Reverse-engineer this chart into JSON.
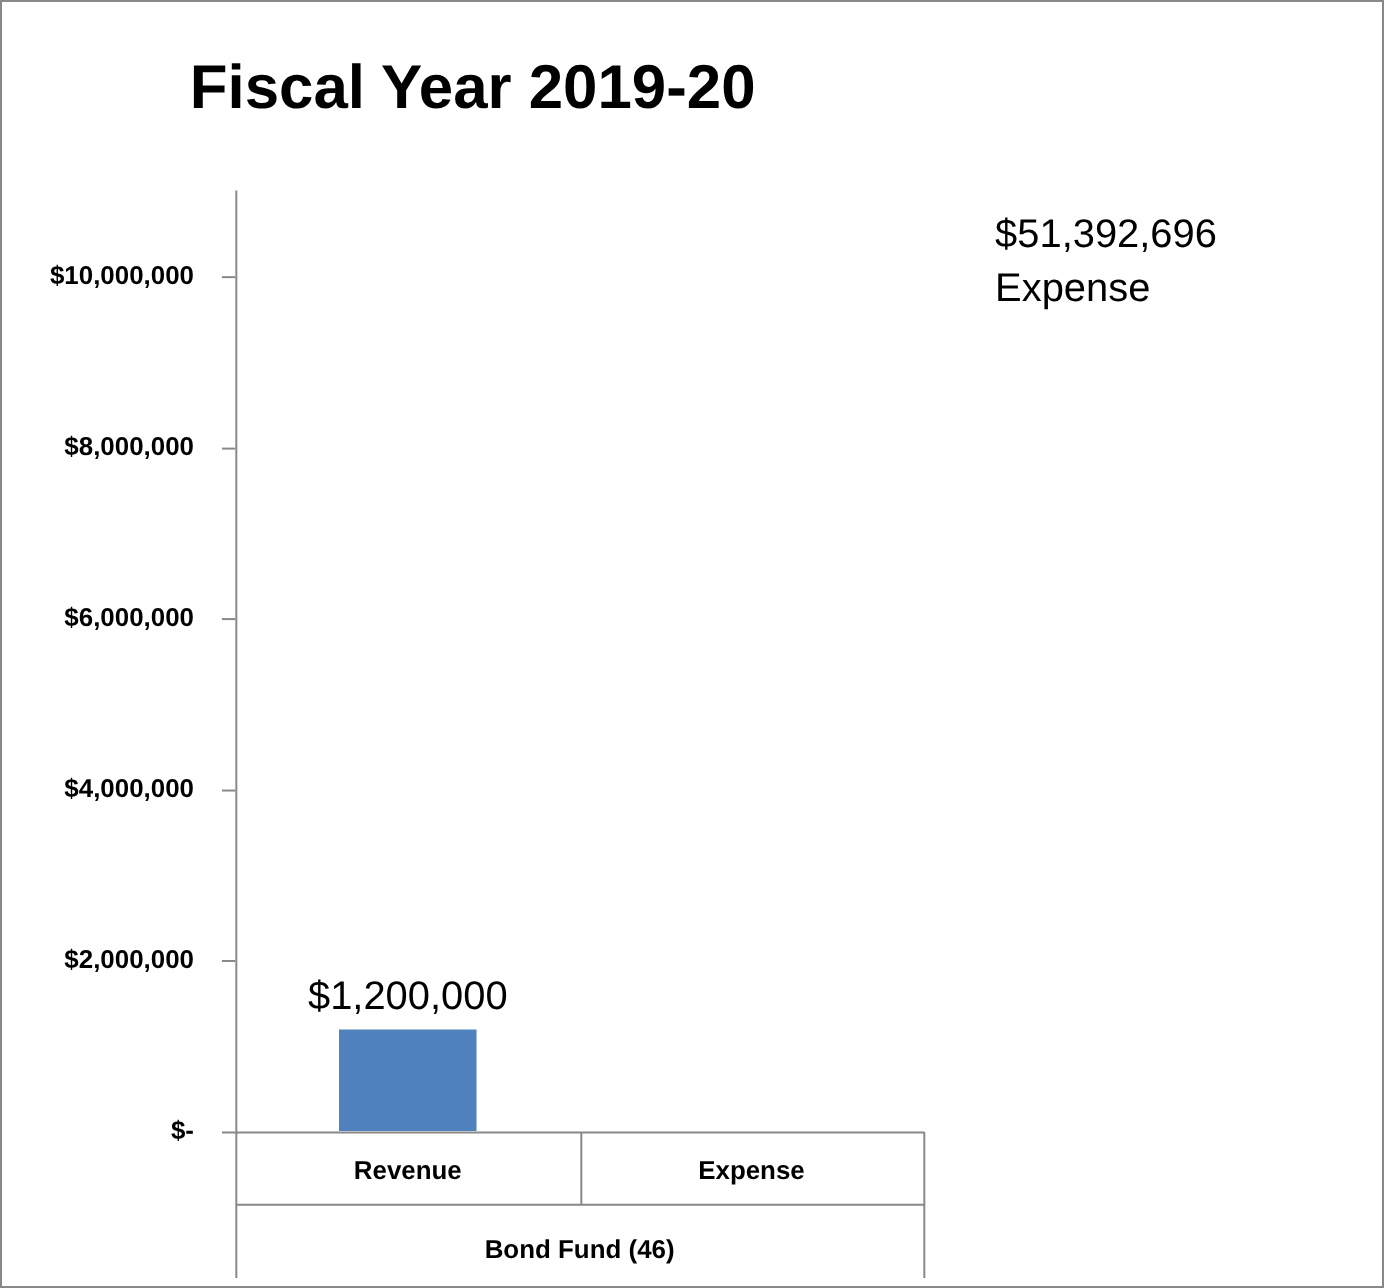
{
  "chart_data": {
    "type": "bar",
    "title": "Fiscal Year 2019-20",
    "xlabel": "Bond Fund (46)",
    "categories": [
      "Revenue",
      "Expense"
    ],
    "values": [
      1200000,
      null
    ],
    "value_labels": [
      "$1,200,000",
      null
    ],
    "annotations": [
      "$51,392,696\nExpense"
    ],
    "color": "#4f81bd",
    "ylim": [
      0,
      11000000
    ],
    "yticks": [
      {
        "value": 0,
        "label": "$-"
      },
      {
        "value": 2000000,
        "label": "$2,000,000"
      },
      {
        "value": 4000000,
        "label": "$4,000,000"
      },
      {
        "value": 6000000,
        "label": "$6,000,000"
      },
      {
        "value": 8000000,
        "label": "$8,000,000"
      },
      {
        "value": 10000000,
        "label": "$10,000,000"
      }
    ],
    "grid": false,
    "legend": false
  }
}
